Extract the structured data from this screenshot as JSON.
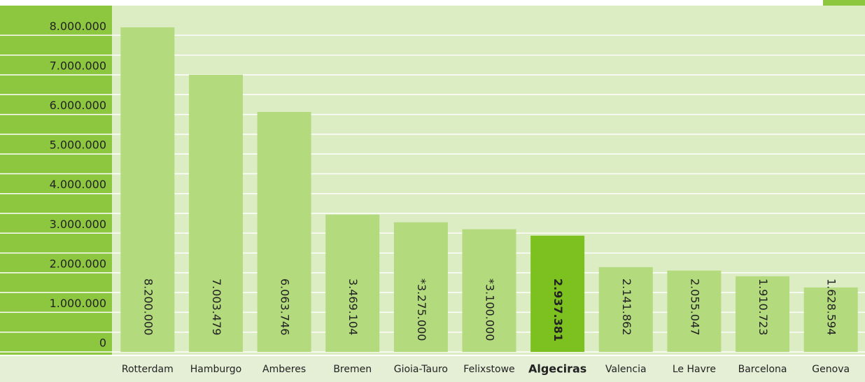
{
  "chart_data": {
    "type": "bar",
    "categories": [
      "Rotterdam",
      "Hamburgo",
      "Amberes",
      "Bremen",
      "Gioia-Tauro",
      "Felixstowe",
      "Algeciras",
      "Valencia",
      "Le Havre",
      "Barcelona",
      "Genova"
    ],
    "values": [
      8200000,
      7003479,
      6063746,
      3469104,
      3275000,
      3100000,
      2937381,
      2141862,
      2055047,
      1910723,
      1628594
    ],
    "value_labels": [
      "8.200.000",
      "7.003.479",
      "6.063.746",
      "3.469.104",
      "*3.275.000",
      "*3.100.000",
      "2.937.381",
      "2.141.862",
      "2.055.047",
      "1.910.723",
      "1.628.594"
    ],
    "color": "#b3da7c",
    "colors": [
      "#b3da7c",
      "#b3da7c",
      "#b3da7c",
      "#b3da7c",
      "#b3da7c",
      "#b3da7c",
      "#7cc11f",
      "#b3da7c",
      "#b3da7c",
      "#b3da7c",
      "#b3da7c"
    ],
    "ylim": [
      0,
      8750000
    ],
    "yticks": [
      0,
      {
        "value": 1000000,
        "label": "1.000.000"
      },
      {
        "value": 2000000,
        "label": "2.000.000"
      },
      {
        "value": 3000000,
        "label": "3.000.000"
      },
      {
        "value": 4000000,
        "label": "4.000.000"
      },
      {
        "value": 5000000,
        "label": "5.000.000"
      },
      {
        "value": 6000000,
        "label": "6.000.000"
      },
      {
        "value": 7000000,
        "label": "7.000.000"
      },
      {
        "value": 8000000,
        "label": "8.000.000"
      }
    ],
    "yticks_minor": [
      500000,
      1500000,
      2500000,
      3500000,
      4500000,
      5500000,
      6500000,
      7500000
    ],
    "grid": true
  }
}
